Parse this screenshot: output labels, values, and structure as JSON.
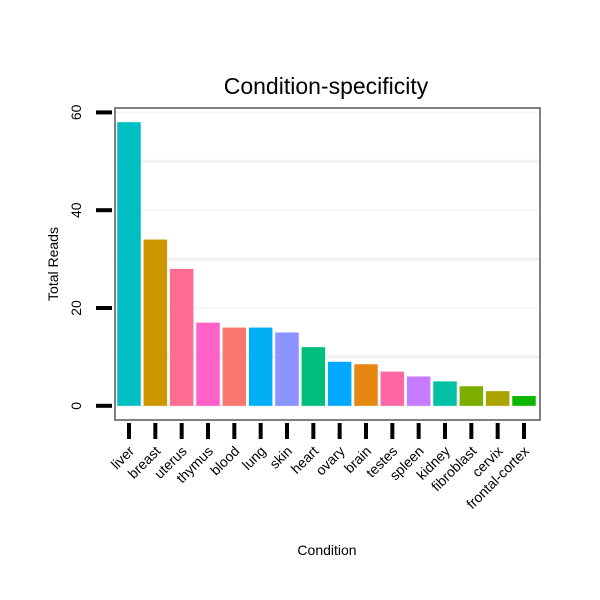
{
  "chart_data": {
    "type": "bar",
    "title": "Condition-specificity",
    "xlabel": "Condition",
    "ylabel": "Total Reads",
    "ylim": [
      -2.9,
      60.9
    ],
    "yticks": [
      0,
      20,
      40,
      60
    ],
    "grid": true,
    "legend": "none",
    "categories": [
      "liver",
      "breast",
      "uterus",
      "thymus",
      "blood",
      "lung",
      "skin",
      "heart",
      "ovary",
      "brain",
      "testes",
      "spleen",
      "kidney",
      "fibroblast",
      "cervix",
      "frontal-cortex"
    ],
    "values": [
      58,
      34,
      28,
      17,
      16,
      16,
      15,
      12,
      9,
      8.5,
      7,
      6,
      5,
      4,
      3,
      2
    ],
    "colors": [
      "#00BFC4",
      "#CD9600",
      "#FF6C91",
      "#FF61C9",
      "#F8766D",
      "#00B0F6",
      "#8B93FF",
      "#00BF7D",
      "#00A9FF",
      "#E68613",
      "#FF67A4",
      "#C77CFF",
      "#00C0A5",
      "#7CAE00",
      "#ABA300",
      "#0CB702"
    ],
    "panel_border": "#808080",
    "grid_color": "#f2f2f2"
  }
}
